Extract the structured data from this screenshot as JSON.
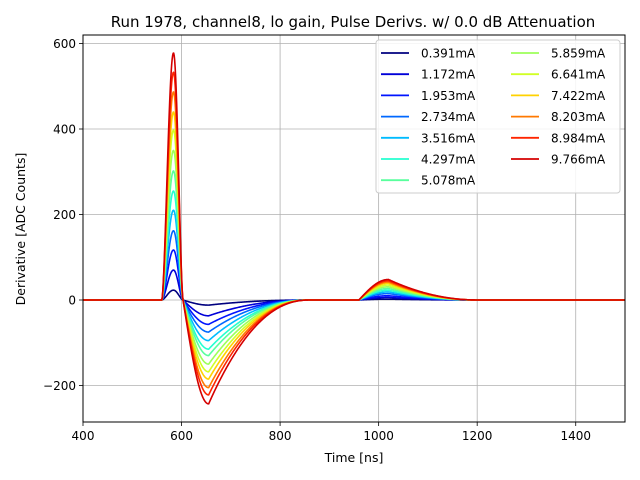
{
  "chart_data": {
    "type": "line",
    "title": "Run 1978, channel8, lo gain, Pulse Derivs. w/ 0.0 dB Attenuation",
    "xlabel": "Time [ns]",
    "ylabel": "Derivative [ADC Counts]",
    "xlim": [
      400,
      1500
    ],
    "ylim": [
      -290,
      620
    ],
    "xticks": [
      400,
      600,
      800,
      1000,
      1200,
      1400
    ],
    "yticks": [
      -200,
      0,
      200,
      400,
      600
    ],
    "ytick_labels": [
      "−200",
      "0",
      "200",
      "400",
      "600"
    ],
    "grid": true,
    "legend_position": "top-right",
    "legend_columns": 2,
    "curve_shape": {
      "onset_ns": 560,
      "peak_ns": 585,
      "zero_cross_ns": 603,
      "trough_ns": 655,
      "recover_ns": 860,
      "bump_start_ns": 960,
      "bump_peak_ns": 1020,
      "bump_end_ns": 1200
    },
    "series": [
      {
        "name": "0.391mA",
        "color": "#00007f",
        "peak": 23,
        "trough": -12,
        "bump": 2
      },
      {
        "name": "1.172mA",
        "color": "#0000d8",
        "peak": 70,
        "trough": -37,
        "bump": 6
      },
      {
        "name": "1.953mA",
        "color": "#0014ff",
        "peak": 117,
        "trough": -57,
        "bump": 10
      },
      {
        "name": "2.734mA",
        "color": "#0068ff",
        "peak": 162,
        "trough": -75,
        "bump": 15
      },
      {
        "name": "3.516mA",
        "color": "#00bcff",
        "peak": 210,
        "trough": -95,
        "bump": 19
      },
      {
        "name": "4.297mA",
        "color": "#25ffd1",
        "peak": 255,
        "trough": -115,
        "bump": 23
      },
      {
        "name": "5.078mA",
        "color": "#59ff9d",
        "peak": 302,
        "trough": -130,
        "bump": 27
      },
      {
        "name": "5.859mA",
        "color": "#9dff59",
        "peak": 350,
        "trough": -150,
        "bump": 31
      },
      {
        "name": "6.641mA",
        "color": "#d1ff25",
        "peak": 398,
        "trough": -168,
        "bump": 35
      },
      {
        "name": "7.422mA",
        "color": "#ffd200",
        "peak": 440,
        "trough": -185,
        "bump": 39
      },
      {
        "name": "8.203mA",
        "color": "#ff7900",
        "peak": 487,
        "trough": -205,
        "bump": 42
      },
      {
        "name": "8.984mA",
        "color": "#ff2500",
        "peak": 533,
        "trough": -222,
        "bump": 45
      },
      {
        "name": "9.766mA",
        "color": "#d40000",
        "peak": 578,
        "trough": -243,
        "bump": 48
      }
    ]
  }
}
